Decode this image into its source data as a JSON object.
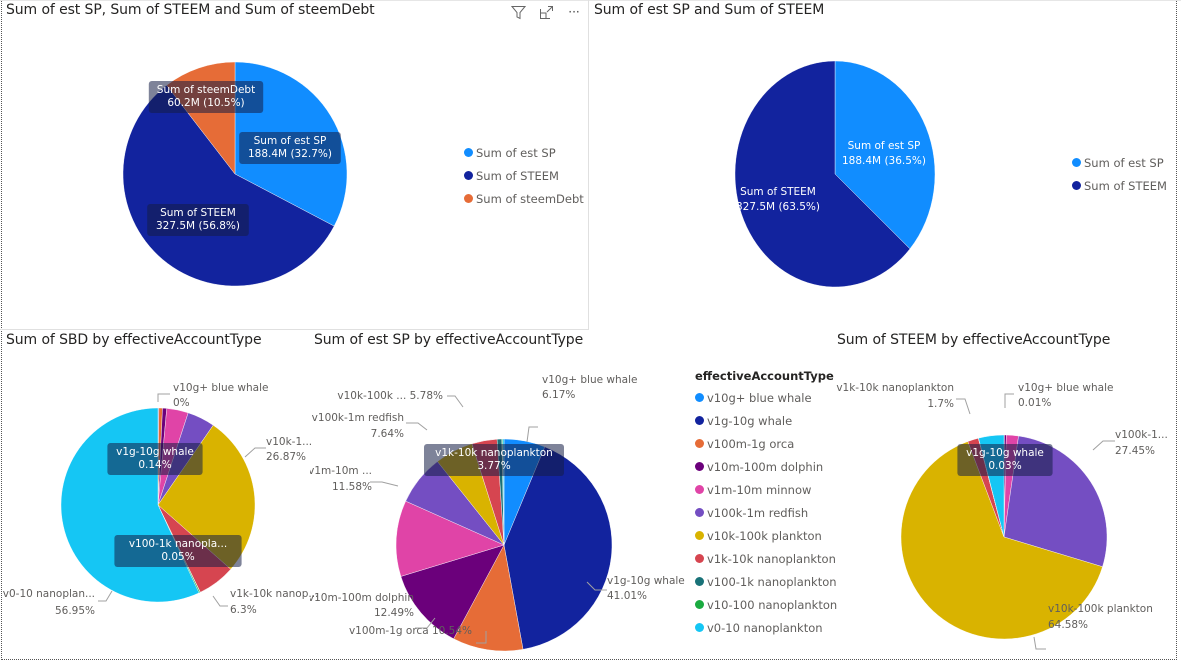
{
  "colors": {
    "v10g+ blue whale": "#118dff",
    "v1g-10g whale": "#12239e",
    "v100m-1g orca": "#e66c37",
    "v10m-100m dolphin": "#6b007b",
    "v1m-10m minnow": "#e044a7",
    "v100k-1m redfish": "#744ec2",
    "v10k-100k plankton": "#d9b300",
    "v1k-10k nanoplankton": "#d64550",
    "v100-1k nanoplankton": "#197278",
    "v10-100 nanoplankton": "#1aab40",
    "v0-10 nanoplankton": "#15c6f4",
    "Sum of est SP": "#118dff",
    "Sum of STEEM": "#12239e",
    "Sum of steemDebt": "#e66c37"
  },
  "toolbar": {
    "icons": [
      "filter-icon",
      "focus-mode-icon",
      "more-options-icon"
    ],
    "more_label": "···"
  },
  "chart_data": [
    {
      "id": "chart1",
      "type": "pie",
      "title": "Sum of est SP, Sum of STEEM and Sum of steemDebt",
      "legend_position": "right",
      "legend": [
        "Sum of est SP",
        "Sum of STEEM",
        "Sum of steemDebt"
      ],
      "slices": [
        {
          "name": "Sum of est SP",
          "value": 188.4,
          "display": "188.4M",
          "percent": 32.7,
          "label": "Sum of est SP\n188.4M (32.7%)"
        },
        {
          "name": "Sum of STEEM",
          "value": 327.5,
          "display": "327.5M",
          "percent": 56.8,
          "label": "Sum of STEEM\n327.5M (56.8%)"
        },
        {
          "name": "Sum of steemDebt",
          "value": 60.2,
          "display": "60.2M",
          "percent": 10.5,
          "label": "Sum of steemDebt\n60.2M (10.5%)"
        }
      ],
      "unit": "M"
    },
    {
      "id": "chart2",
      "type": "pie",
      "title": "Sum of est SP and Sum of STEEM",
      "legend_position": "right",
      "legend": [
        "Sum of est SP",
        "Sum of STEEM"
      ],
      "slices": [
        {
          "name": "Sum of est SP",
          "value": 188.4,
          "display": "188.4M",
          "percent": 36.5,
          "label": "Sum of est SP\n188.4M (36.5%)"
        },
        {
          "name": "Sum of STEEM",
          "value": 327.5,
          "display": "327.5M",
          "percent": 63.5,
          "label": "Sum of STEEM\n327.5M (63.5%)"
        }
      ],
      "unit": "M"
    },
    {
      "id": "chart3",
      "type": "pie",
      "title": "Sum of SBD by effectiveAccountType",
      "slices": [
        {
          "name": "v10g+ blue whale",
          "percent": 0.0,
          "label": "v10g+ blue whale\n0%"
        },
        {
          "name": "v1g-10g whale",
          "percent": 0.14,
          "label": "v1g-10g whale\n0.14%"
        },
        {
          "name": "v100m-1g orca",
          "percent": 0.6
        },
        {
          "name": "v10m-100m dolphin",
          "percent": 0.7
        },
        {
          "name": "v1m-10m minnow",
          "percent": 3.6
        },
        {
          "name": "v100k-1m redfish",
          "percent": 4.6
        },
        {
          "name": "v10k-100k plankton",
          "percent": 26.87,
          "label": "v10k-1...\n26.87%"
        },
        {
          "name": "v1k-10k nanoplankton",
          "percent": 6.3,
          "label": "v1k-10k nanop...\n6.3%"
        },
        {
          "name": "v100-1k nanoplankton",
          "percent": 0.05,
          "label": "v100-1k nanopla...\n0.05%"
        },
        {
          "name": "v10-100 nanoplankton",
          "percent": 0.19
        },
        {
          "name": "v0-10 nanoplankton",
          "percent": 56.95,
          "label": "v0-10 nanoplan...\n56.95%"
        }
      ]
    },
    {
      "id": "chart4",
      "type": "pie",
      "title": "Sum of est SP by effectiveAccountType",
      "legend_position": "right",
      "legend_title": "effectiveAccountType",
      "legend": [
        "v10g+ blue whale",
        "v1g-10g whale",
        "v100m-1g orca",
        "v10m-100m dolphin",
        "v1m-10m minnow",
        "v100k-1m redfish",
        "v10k-100k plankton",
        "v1k-10k nanoplankton",
        "v100-1k nanoplankton",
        "v10-100 nanoplankton",
        "v0-10 nanoplankton"
      ],
      "slices": [
        {
          "name": "v10g+ blue whale",
          "percent": 6.17,
          "label": "v10g+ blue whale\n6.17%"
        },
        {
          "name": "v1g-10g whale",
          "percent": 41.01,
          "label": "v1g-10g whale\n41.01%"
        },
        {
          "name": "v100m-1g orca",
          "percent": 10.54,
          "label": "v100m-1g orca 10.54%"
        },
        {
          "name": "v10m-100m dolphin",
          "percent": 12.49,
          "label": "v10m-100m dolphin\n12.49%"
        },
        {
          "name": "v1m-10m minnow",
          "percent": 11.58,
          "label": "v1m-10m ...\n11.58%"
        },
        {
          "name": "v100k-1m redfish",
          "percent": 7.64,
          "label": "v100k-1m redfish\n7.64%"
        },
        {
          "name": "v10k-100k plankton",
          "percent": 5.78,
          "label": "v10k-100k ... 5.78%"
        },
        {
          "name": "v1k-10k nanoplankton",
          "percent": 3.77,
          "label": "v1k-10k nanoplankton\n3.77%"
        },
        {
          "name": "v100-1k nanoplankton",
          "percent": 0.7
        },
        {
          "name": "v10-100 nanoplankton",
          "percent": 0.12
        },
        {
          "name": "v0-10 nanoplankton",
          "percent": 0.2
        }
      ]
    },
    {
      "id": "chart5",
      "type": "pie",
      "title": "Sum of STEEM by effectiveAccountType",
      "slices": [
        {
          "name": "v10g+ blue whale",
          "percent": 0.01,
          "label": "v10g+ blue whale\n0.01%"
        },
        {
          "name": "v1g-10g whale",
          "percent": 0.03,
          "label": "v1g-10g whale\n0.03%"
        },
        {
          "name": "v100m-1g orca",
          "percent": 0.02
        },
        {
          "name": "v10m-100m dolphin",
          "percent": 0.3
        },
        {
          "name": "v1m-10m minnow",
          "percent": 1.9
        },
        {
          "name": "v100k-1m redfish",
          "percent": 27.45,
          "label": "v100k-1...\n27.45%"
        },
        {
          "name": "v10k-100k plankton",
          "percent": 64.58,
          "label": "v10k-100k plankton\n64.58%"
        },
        {
          "name": "v1k-10k nanoplankton",
          "percent": 1.7,
          "label": "v1k-10k nanoplankton\n1.7%"
        },
        {
          "name": "v100-1k nanoplankton",
          "percent": 0.02
        },
        {
          "name": "v10-100 nanoplankton",
          "percent": 0.02
        },
        {
          "name": "v0-10 nanoplankton",
          "percent": 3.97
        }
      ]
    }
  ]
}
